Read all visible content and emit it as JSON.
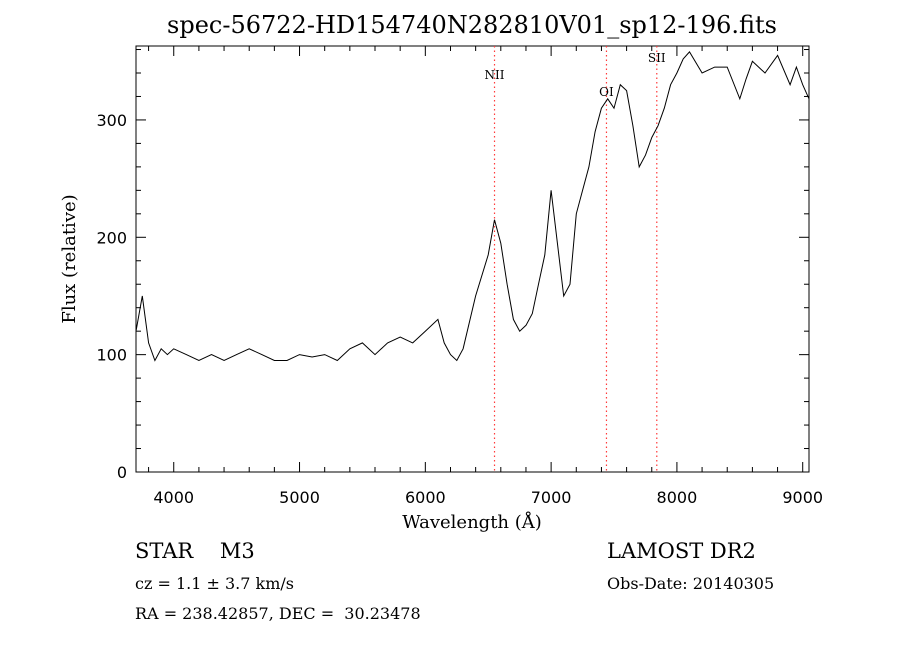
{
  "chart_data": {
    "type": "line",
    "title": "spec-56722-HD154740N282810V01_sp12-196.fits",
    "xlabel": "Wavelength (Å)",
    "ylabel": "Flux (relative)",
    "xlim": [
      3700,
      9050
    ],
    "ylim": [
      0,
      363
    ],
    "x_ticks": [
      4000,
      5000,
      6000,
      7000,
      8000,
      9000
    ],
    "y_ticks": [
      0,
      100,
      200,
      300
    ],
    "grid": false,
    "series": [
      {
        "x": [
          3700,
          3750,
          3800,
          3850,
          3900,
          3950,
          4000,
          4100,
          4200,
          4300,
          4400,
          4500,
          4600,
          4700,
          4800,
          4900,
          5000,
          5100,
          5200,
          5300,
          5400,
          5500,
          5600,
          5700,
          5800,
          5900,
          6000,
          6100,
          6150,
          6200,
          6250,
          6300,
          6400,
          6500,
          6550,
          6600,
          6650,
          6700,
          6750,
          6800,
          6850,
          6900,
          6950,
          7000,
          7050,
          7100,
          7150,
          7200,
          7250,
          7300,
          7350,
          7400,
          7450,
          7500,
          7550,
          7600,
          7650,
          7700,
          7750,
          7800,
          7850,
          7900,
          7950,
          8000,
          8050,
          8100,
          8200,
          8300,
          8400,
          8500,
          8550,
          8600,
          8700,
          8800,
          8900,
          8950,
          9000,
          9050
        ],
        "y": [
          120,
          150,
          110,
          95,
          105,
          100,
          105,
          100,
          95,
          100,
          95,
          100,
          105,
          100,
          95,
          95,
          100,
          98,
          100,
          95,
          105,
          110,
          100,
          110,
          115,
          110,
          120,
          130,
          110,
          100,
          95,
          105,
          150,
          185,
          215,
          195,
          160,
          130,
          120,
          125,
          135,
          160,
          185,
          240,
          195,
          150,
          160,
          220,
          240,
          260,
          290,
          310,
          318,
          310,
          330,
          325,
          295,
          260,
          270,
          285,
          295,
          310,
          330,
          340,
          352,
          358,
          340,
          345,
          345,
          318,
          335,
          350,
          340,
          355,
          330,
          345,
          330,
          318
        ]
      }
    ],
    "lines": [
      {
        "label": "NII",
        "x": 6550,
        "color": "#ff3a3a"
      },
      {
        "label": "OI",
        "x": 7440,
        "color": "#ff3a3a"
      },
      {
        "label": "SII",
        "x": 7840,
        "color": "#ff3a3a"
      }
    ]
  },
  "info": {
    "class": "STAR    M3",
    "cz": "cz = 1.1 ± 3.7 km/s",
    "coords": "RA = 238.42857, DEC =  30.23478",
    "survey": "LAMOST DR2",
    "obs_date": "Obs-Date: 20140305"
  }
}
